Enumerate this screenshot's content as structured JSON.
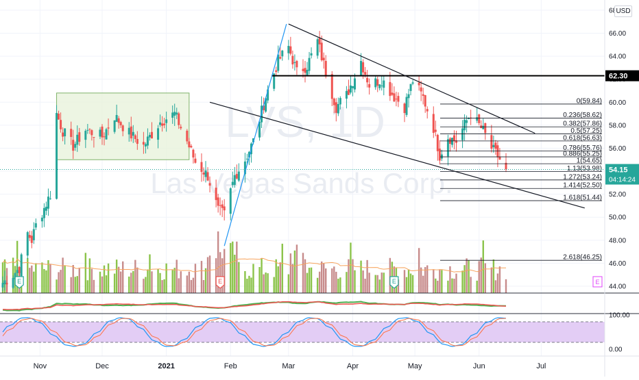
{
  "watermark": {
    "ticker": "LVS, 1D",
    "company": "Las Vegas Sands Corp."
  },
  "currency_label": "USD",
  "price": {
    "current": "54.15",
    "countdown": "04:14:24",
    "marked_level": "62.30"
  },
  "colors": {
    "up": "#26a69a",
    "down": "#ef5350",
    "volume_up": "#8bc34a",
    "volume_down": "#c78b8b",
    "price_tag": "#26a69a",
    "rsi_band": "#e3cdf5",
    "trend_blue": "#2196f3",
    "volume_ma": "#f7a35c"
  },
  "earnings_marker": "E",
  "chart_data": [
    {
      "type": "line",
      "x_ticks": [
        "Nov",
        "Dec",
        "2021",
        "Feb",
        "Mar",
        "Apr",
        "May",
        "Jun",
        "Jul"
      ],
      "y_ticks": [
        44.0,
        46.0,
        48.0,
        50.0,
        52.0,
        54.0,
        56.0,
        58.0,
        60.0,
        62.0,
        64.0,
        66.0,
        68.0
      ],
      "y_range": [
        43.6,
        68.3
      ],
      "close_series": [
        {
          "date": "2020-10-14",
          "close": 44.3
        },
        {
          "date": "2020-10-19",
          "close": 45.0
        },
        {
          "date": "2020-10-22",
          "close": 45.6
        },
        {
          "date": "2020-10-26",
          "close": 48.6
        },
        {
          "date": "2020-10-28",
          "close": 48.0
        },
        {
          "date": "2020-10-30",
          "close": 49.3
        },
        {
          "date": "2020-11-03",
          "close": 50.8
        },
        {
          "date": "2020-11-06",
          "close": 52.0
        },
        {
          "date": "2020-11-09",
          "close": 59.0
        },
        {
          "date": "2020-11-12",
          "close": 57.5
        },
        {
          "date": "2020-11-17",
          "close": 56.2
        },
        {
          "date": "2020-11-23",
          "close": 57.6
        },
        {
          "date": "2020-12-01",
          "close": 57.0
        },
        {
          "date": "2020-12-07",
          "close": 58.8
        },
        {
          "date": "2020-12-14",
          "close": 57.3
        },
        {
          "date": "2020-12-21",
          "close": 56.2
        },
        {
          "date": "2020-12-29",
          "close": 58.3
        },
        {
          "date": "2021-01-05",
          "close": 59.0
        },
        {
          "date": "2021-01-11",
          "close": 56.6
        },
        {
          "date": "2021-01-15",
          "close": 54.8
        },
        {
          "date": "2021-01-21",
          "close": 53.6
        },
        {
          "date": "2021-01-26",
          "close": 50.6
        },
        {
          "date": "2021-01-29",
          "close": 50.2
        },
        {
          "date": "2021-02-03",
          "close": 53.6
        },
        {
          "date": "2021-02-08",
          "close": 55.0
        },
        {
          "date": "2021-02-12",
          "close": 56.6
        },
        {
          "date": "2021-02-18",
          "close": 60.5
        },
        {
          "date": "2021-02-24",
          "close": 63.6
        },
        {
          "date": "2021-03-01",
          "close": 64.8
        },
        {
          "date": "2021-03-05",
          "close": 62.6
        },
        {
          "date": "2021-03-10",
          "close": 63.2
        },
        {
          "date": "2021-03-15",
          "close": 65.3
        },
        {
          "date": "2021-03-19",
          "close": 62.6
        },
        {
          "date": "2021-03-24",
          "close": 59.6
        },
        {
          "date": "2021-03-29",
          "close": 60.6
        },
        {
          "date": "2021-04-05",
          "close": 63.6
        },
        {
          "date": "2021-04-09",
          "close": 61.5
        },
        {
          "date": "2021-04-15",
          "close": 62.0
        },
        {
          "date": "2021-04-21",
          "close": 60.5
        },
        {
          "date": "2021-04-26",
          "close": 59.6
        },
        {
          "date": "2021-04-30",
          "close": 61.9
        },
        {
          "date": "2021-05-05",
          "close": 60.4
        },
        {
          "date": "2021-05-10",
          "close": 57.8
        },
        {
          "date": "2021-05-13",
          "close": 55.4
        },
        {
          "date": "2021-05-17",
          "close": 57.0
        },
        {
          "date": "2021-05-21",
          "close": 56.6
        },
        {
          "date": "2021-05-26",
          "close": 58.4
        },
        {
          "date": "2021-05-28",
          "close": 59.0
        },
        {
          "date": "2021-06-03",
          "close": 57.5
        },
        {
          "date": "2021-06-07",
          "close": 56.0
        },
        {
          "date": "2021-06-10",
          "close": 55.3
        },
        {
          "date": "2021-06-14",
          "close": 54.15
        }
      ],
      "fibonacci_levels": [
        {
          "label": "0(59.84)",
          "value": 59.84
        },
        {
          "label": "0.236(58.62)",
          "value": 58.62
        },
        {
          "label": "0.382(57.86)",
          "value": 57.86
        },
        {
          "label": "0.5(57.25)",
          "value": 57.25
        },
        {
          "label": "0.618(56.63)",
          "value": 56.63
        },
        {
          "label": "0.786(55.76)",
          "value": 55.76
        },
        {
          "label": "0.886(55.25)",
          "value": 55.25
        },
        {
          "label": "1(54.65)",
          "value": 54.65
        },
        {
          "label": "1.13(53.98)",
          "value": 53.98
        },
        {
          "label": "1.272(53.24)",
          "value": 53.24
        },
        {
          "label": "1.414(52.50)",
          "value": 52.5
        },
        {
          "label": "1.618(51.44)",
          "value": 51.44
        },
        {
          "label": "2.618(46.25)",
          "value": 46.25
        }
      ],
      "horizontal_level": 62.3,
      "trendlines": [
        {
          "name": "upper-channel",
          "from": [
            "2021-03-01",
            66.8
          ],
          "to": [
            "2021-06-28",
            57.3
          ]
        },
        {
          "name": "lower-channel",
          "from": [
            "2021-01-22",
            60.0
          ],
          "to": [
            "2021-07-22",
            50.8
          ]
        },
        {
          "name": "rally",
          "from": [
            "2021-01-29",
            47.5
          ],
          "to": [
            "2021-02-28",
            66.8
          ]
        }
      ],
      "consolidation_box": {
        "from": "2020-11-09",
        "to": "2021-01-12",
        "top": 60.8,
        "bottom": 55.0
      }
    },
    {
      "type": "bar",
      "name": "volume",
      "note": "volume bars shown without a printed scale"
    },
    {
      "type": "line",
      "name": "oscillator",
      "y_ticks": [
        "100.00",
        "0.00"
      ],
      "y_range": [
        0,
        100
      ],
      "band": [
        20,
        80
      ]
    }
  ]
}
